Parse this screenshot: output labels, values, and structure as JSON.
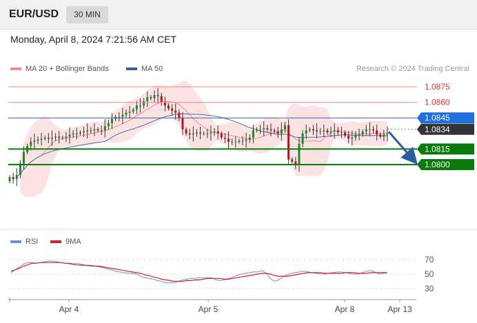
{
  "header": {
    "symbol": "EUR/USD",
    "timeframe": "30 MIN",
    "datetime": "Monday, April 8, 2024 7:21:56 AM CET"
  },
  "legend": {
    "main": [
      {
        "label": "MA 20 + Bollinger Bands",
        "color": "#f08a8a"
      },
      {
        "label": "MA 50",
        "color": "#3a5fa0"
      }
    ],
    "credit": "Research © 2024 Trading Central",
    "indicator": [
      {
        "label": "RSI",
        "color": "#6b8fdc"
      },
      {
        "label": "9MA",
        "color": "#d22020"
      }
    ]
  },
  "chart_data": [
    {
      "type": "candlestick",
      "x_labels": [
        "Apr 4",
        "Apr 5",
        "Apr 8",
        "Apr 13"
      ],
      "ylim": [
        1.077,
        1.088
      ],
      "close": [
        1.0788,
        1.0786,
        1.079,
        1.0801,
        1.0812,
        1.0818,
        1.0822,
        1.0823,
        1.0824,
        1.0825,
        1.0826,
        1.0825,
        1.0826,
        1.0827,
        1.0826,
        1.0826,
        1.0827,
        1.0829,
        1.083,
        1.083,
        1.0831,
        1.0832,
        1.0833,
        1.0833,
        1.0834,
        1.0833,
        1.0833,
        1.0837,
        1.084,
        1.0844,
        1.0846,
        1.0846,
        1.0848,
        1.085,
        1.0851,
        1.0853,
        1.0857,
        1.0857,
        1.0861,
        1.0865,
        1.0864,
        1.0867,
        1.0866,
        1.086,
        1.0857,
        1.0854,
        1.0852,
        1.085,
        1.0845,
        1.0834,
        1.083,
        1.0829,
        1.083,
        1.0831,
        1.083,
        1.083,
        1.083,
        1.0831,
        1.0832,
        1.083,
        1.0826,
        1.0825,
        1.0822,
        1.0822,
        1.0822,
        1.0823,
        1.0823,
        1.0824,
        1.0826,
        1.0833,
        1.0834,
        1.0834,
        1.0835,
        1.0834,
        1.0833,
        1.0832,
        1.083,
        1.0834,
        1.0838,
        1.0805,
        1.0803,
        1.08,
        1.082,
        1.083,
        1.0833,
        1.0834,
        1.0833,
        1.0832,
        1.0832,
        1.0833,
        1.0831,
        1.0832,
        1.0833,
        1.0831,
        1.0831,
        1.0828,
        1.0825,
        1.0826,
        1.0829,
        1.0829,
        1.0832,
        1.0834,
        1.0834,
        1.0833,
        1.0829,
        1.0827,
        1.0829,
        1.083
      ],
      "price_lines": [
        {
          "label": "1.0875",
          "value": 1.0875,
          "style": "line-red"
        },
        {
          "label": "1.0860",
          "value": 1.086,
          "style": "line-red"
        },
        {
          "label": "1.0845",
          "value": 1.0845,
          "style": "badge-blue"
        },
        {
          "label": "1.0834",
          "value": 1.0834,
          "style": "badge-dark"
        },
        {
          "label": "1.0815",
          "value": 1.0815,
          "style": "badge-green"
        },
        {
          "label": "1.0800",
          "value": 1.08,
          "style": "badge-green"
        }
      ],
      "annotation": {
        "type": "arrow",
        "direction": "down",
        "from": 1.0833,
        "to": 1.0802,
        "color": "#2c5d9e"
      }
    },
    {
      "type": "line",
      "series_labels": [
        "RSI",
        "9MA"
      ],
      "ylim": [
        20,
        80
      ],
      "y_ticks": [
        30,
        50,
        70
      ],
      "rsi": [
        52,
        56,
        60,
        64,
        66,
        66,
        65,
        66,
        67,
        68,
        68,
        67,
        66,
        65,
        64,
        63,
        62,
        62,
        62,
        61,
        61,
        60,
        59,
        57,
        56,
        54,
        53,
        52,
        51,
        51,
        50,
        47,
        45,
        44,
        43,
        41,
        40,
        38,
        38,
        38,
        40,
        42,
        43,
        44,
        44,
        45,
        45,
        45,
        45,
        42,
        41,
        42,
        44,
        46,
        48,
        50,
        51,
        52,
        53,
        53,
        55,
        51,
        44,
        40,
        42,
        46,
        49,
        51,
        52,
        53,
        54,
        53,
        52,
        51,
        50,
        50,
        51,
        52,
        53,
        53,
        52,
        51,
        50,
        50,
        52,
        54,
        55,
        53,
        50,
        51,
        52
      ],
      "ma9": [
        54,
        56,
        58,
        61,
        63,
        65,
        65,
        66,
        66,
        66,
        66,
        66,
        66,
        65,
        65,
        64,
        64,
        63,
        62,
        62,
        61,
        61,
        60,
        59,
        58,
        57,
        56,
        55,
        54,
        53,
        52,
        51,
        49,
        48,
        46,
        45,
        43,
        42,
        41,
        40,
        40,
        40,
        41,
        41,
        42,
        42,
        43,
        44,
        44,
        44,
        44,
        43,
        43,
        44,
        45,
        46,
        47,
        48,
        49,
        50,
        51,
        51,
        50,
        48,
        47,
        47,
        47,
        48,
        49,
        50,
        51,
        52,
        52,
        52,
        52,
        51,
        51,
        51,
        51,
        51,
        52,
        52,
        52,
        51,
        51,
        51,
        52,
        52,
        52,
        52,
        52
      ]
    }
  ]
}
